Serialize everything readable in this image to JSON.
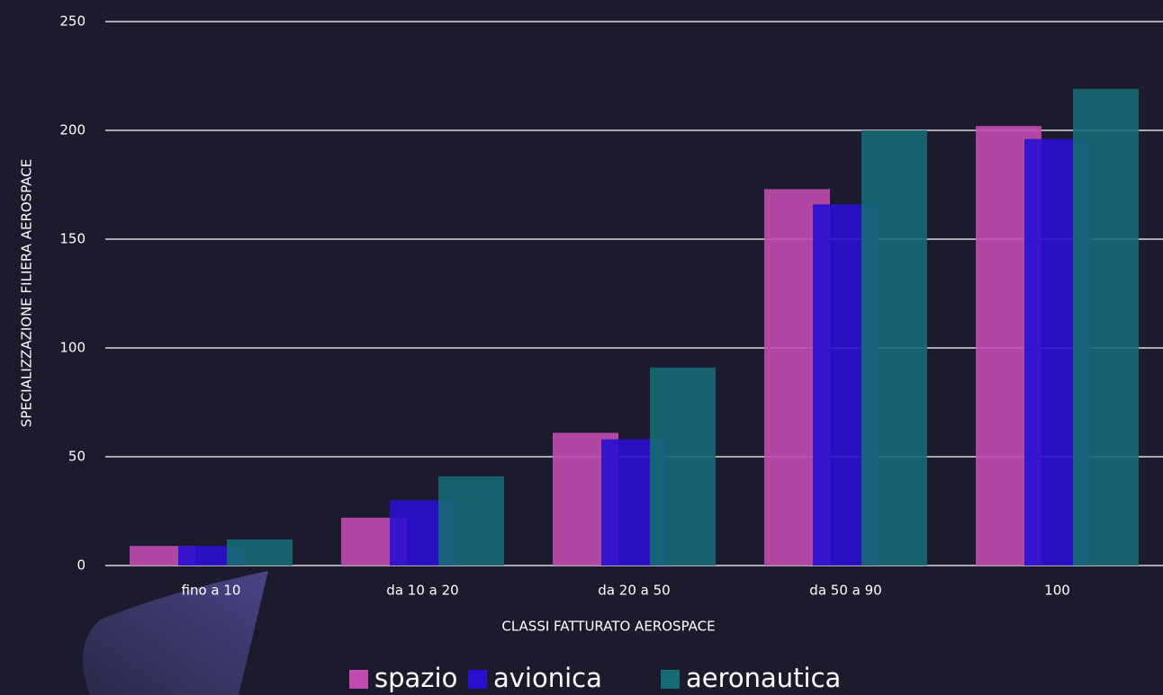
{
  "chart_data": {
    "type": "bar",
    "x_label": "CLASSI FATTURATO AEROSPACE",
    "y_label": "SPECIALIZZAZIONE FILIERA AEROSPACE",
    "categories": [
      "fino a 10",
      "da 10 a 20",
      "da 20 a 50",
      "da 50 a 90",
      "100"
    ],
    "series": [
      {
        "name": "spazio",
        "color": "#c04cb0",
        "values": [
          9,
          22,
          61,
          173,
          202
        ]
      },
      {
        "name": "avionica",
        "color": "#2a0fd0",
        "values": [
          9,
          30,
          58,
          166,
          196
        ]
      },
      {
        "name": "aeronautica",
        "color": "#156a75",
        "values": [
          12,
          41,
          91,
          200,
          219
        ]
      }
    ],
    "ylim": [
      0,
      250
    ],
    "yticks": [
      0,
      50,
      100,
      150,
      200,
      250
    ],
    "grid": true
  }
}
